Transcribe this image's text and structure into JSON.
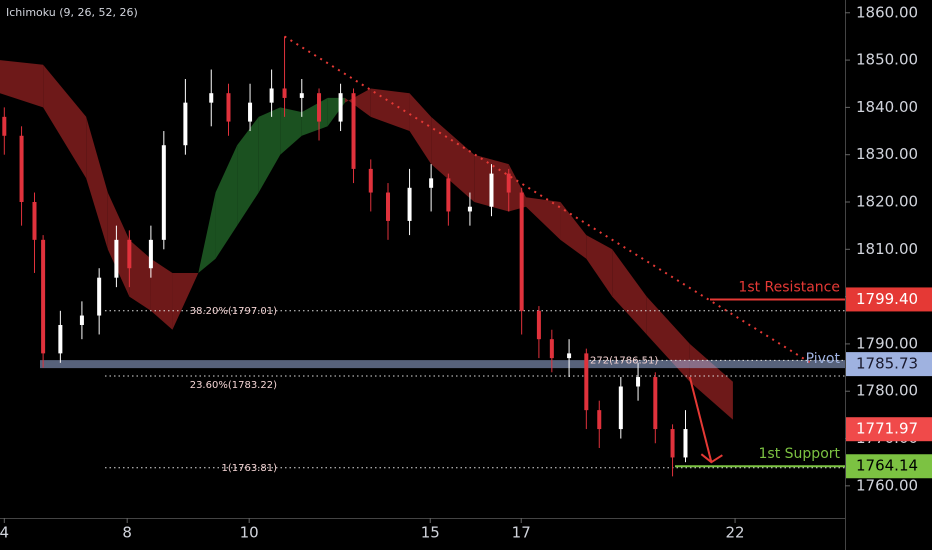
{
  "chart_data": {
    "type": "candlestick",
    "title": "Ichimoku (9, 26, 52, 26)",
    "xlim": [
      0,
      196
    ],
    "ylim": [
      1753.2,
      1862.7
    ],
    "xticks": [
      {
        "value": 1,
        "label": "4"
      },
      {
        "value": 29.5,
        "label": "8"
      },
      {
        "value": 57.8,
        "label": "10"
      },
      {
        "value": 99.8,
        "label": "15"
      },
      {
        "value": 120.9,
        "label": "17"
      },
      {
        "value": 170.5,
        "label": "22"
      }
    ],
    "yticks": [
      {
        "value": 1760,
        "label": "1760.00"
      },
      {
        "value": 1770,
        "label": "1770.00"
      },
      {
        "value": 1780,
        "label": "1780.00"
      },
      {
        "value": 1790,
        "label": "1790.00"
      },
      {
        "value": 1800,
        "label": "1800.00"
      },
      {
        "value": 1810,
        "label": "1810.00"
      },
      {
        "value": 1820,
        "label": "1820.00"
      },
      {
        "value": 1830,
        "label": "1830.00"
      },
      {
        "value": 1840,
        "label": "1840.00"
      },
      {
        "value": 1850,
        "label": "1850.00"
      },
      {
        "value": 1860,
        "label": "1860.00"
      }
    ],
    "up_color": "#ffffff",
    "down_color": "#e0323c",
    "candles": {
      "x": [
        1,
        5,
        8,
        10,
        14,
        19,
        23,
        27,
        30,
        35,
        38,
        43,
        49,
        53,
        58,
        63,
        66,
        70,
        74,
        79,
        82,
        86,
        90,
        95,
        100,
        104,
        109,
        114,
        118,
        121,
        125,
        128,
        132,
        136,
        139,
        144,
        148,
        152,
        156,
        159
      ],
      "open": [
        1838,
        1834,
        1820,
        1812,
        1788,
        1794,
        1796,
        1804,
        1812,
        1806,
        1812,
        1832,
        1841,
        1843,
        1837,
        1841,
        1844,
        1842,
        1843,
        1837,
        1843,
        1827,
        1822,
        1816,
        1823,
        1825,
        1818,
        1819,
        1826,
        1822,
        1797,
        1791,
        1787,
        1788,
        1776,
        1772,
        1781,
        1783,
        1772,
        1766
      ],
      "high": [
        1840,
        1836,
        1822,
        1813,
        1797,
        1799,
        1806,
        1815,
        1814,
        1815,
        1835,
        1846,
        1848,
        1845,
        1845,
        1848,
        1855,
        1846,
        1844,
        1845,
        1844,
        1829,
        1824,
        1827,
        1828,
        1826,
        1822,
        1828,
        1827,
        1823,
        1798,
        1793,
        1791,
        1789,
        1778,
        1783,
        1786,
        1784,
        1773,
        1776
      ],
      "low": [
        1830,
        1815,
        1805,
        1785,
        1786,
        1791,
        1792,
        1802,
        1802,
        1804,
        1810,
        1830,
        1836,
        1834,
        1835,
        1838,
        1838,
        1838,
        1833,
        1835,
        1824,
        1818,
        1812,
        1813,
        1818,
        1815,
        1815,
        1817,
        1818,
        1792,
        1787,
        1784,
        1783,
        1772,
        1768,
        1770,
        1778,
        1769,
        1762,
        1765
      ],
      "close": [
        1834,
        1820,
        1812,
        1788,
        1794,
        1796,
        1804,
        1812,
        1806,
        1812,
        1832,
        1841,
        1843,
        1837,
        1841,
        1844,
        1842,
        1843,
        1837,
        1843,
        1827,
        1822,
        1816,
        1823,
        1825,
        1818,
        1819,
        1826,
        1822,
        1797,
        1791,
        1787,
        1788,
        1776,
        1772,
        1781,
        1783,
        1772,
        1766,
        1772
      ]
    },
    "cloud": {
      "x": [
        0,
        10,
        20,
        25,
        30,
        35,
        40,
        46,
        50,
        55,
        60,
        65,
        70,
        76,
        80,
        86,
        95,
        100,
        110,
        118,
        122,
        130,
        136,
        142,
        150,
        160,
        170
      ],
      "span_a": [
        1843,
        1840,
        1825,
        1810,
        1800,
        1797,
        1793,
        1805,
        1822,
        1832,
        1838,
        1840,
        1839,
        1842,
        1842,
        1838,
        1835,
        1828,
        1820,
        1818,
        1819,
        1812,
        1808,
        1800,
        1792,
        1782,
        1774
      ],
      "span_b": [
        1850,
        1849,
        1838,
        1822,
        1812,
        1808,
        1805,
        1805,
        1808,
        1815,
        1822,
        1830,
        1834,
        1836,
        1841,
        1844,
        1843,
        1838,
        1830,
        1828,
        1821,
        1820,
        1813,
        1810,
        1800,
        1790,
        1782
      ],
      "bull_color": "#1e5a23",
      "bear_color": "#7a1c1c"
    },
    "fib_levels": [
      {
        "label": "38.20%(1797.01)",
        "value": 1797.01
      },
      {
        "label": "23.60%(1783.22)",
        "value": 1783.22
      },
      {
        "label": "1(1763.81)",
        "value": 1763.81
      },
      {
        "label": "272(1786.51)",
        "value": 1786.51
      }
    ],
    "levels": [
      {
        "name": "1st Resistance",
        "value": 1799.4,
        "value_label": "1799.40",
        "color": "#e53935"
      },
      {
        "name": "Pivot",
        "value": 1785.73,
        "value_label": "1785.73",
        "color": "#9fb2e0"
      },
      {
        "name": "1st Support",
        "value": 1764.14,
        "value_label": "1764.14",
        "color": "#7cc242"
      }
    ],
    "last_price": {
      "value": 1771.97,
      "value_label": "1771.97",
      "color": "#f04a4a"
    },
    "trend_line": {
      "x": [
        66,
        188
      ],
      "y": [
        1855,
        1786
      ],
      "color": "#e53935"
    },
    "arrow": {
      "x": [
        160,
        165
      ],
      "y": [
        1783,
        1765
      ],
      "color": "#e53935"
    }
  }
}
